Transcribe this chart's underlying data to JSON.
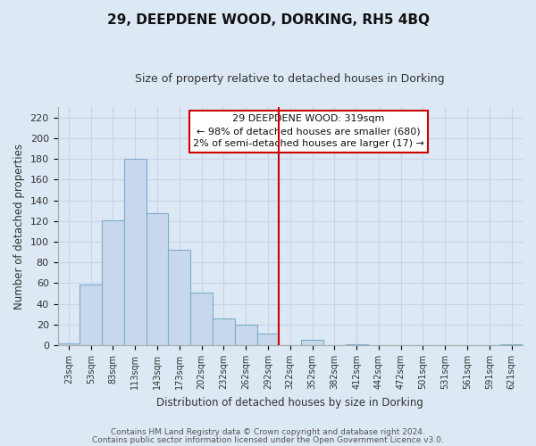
{
  "title": "29, DEEPDENE WOOD, DORKING, RH5 4BQ",
  "subtitle": "Size of property relative to detached houses in Dorking",
  "xlabel": "Distribution of detached houses by size in Dorking",
  "ylabel": "Number of detached properties",
  "bin_labels": [
    "23sqm",
    "53sqm",
    "83sqm",
    "113sqm",
    "143sqm",
    "173sqm",
    "202sqm",
    "232sqm",
    "262sqm",
    "292sqm",
    "322sqm",
    "352sqm",
    "382sqm",
    "412sqm",
    "442sqm",
    "472sqm",
    "501sqm",
    "531sqm",
    "561sqm",
    "591sqm",
    "621sqm"
  ],
  "bar_heights": [
    2,
    59,
    121,
    180,
    128,
    92,
    51,
    26,
    20,
    11,
    0,
    5,
    0,
    1,
    0,
    0,
    0,
    0,
    0,
    0,
    1
  ],
  "bar_color": "#c8d8ec",
  "bar_edge_color": "#7aaccc",
  "vline_color": "#cc0000",
  "vline_x_index": 10,
  "ylim": [
    0,
    230
  ],
  "yticks": [
    0,
    20,
    40,
    60,
    80,
    100,
    120,
    140,
    160,
    180,
    200,
    220
  ],
  "annotation_title": "29 DEEPDENE WOOD: 319sqm",
  "annotation_line1": "← 98% of detached houses are smaller (680)",
  "annotation_line2": "2% of semi-detached houses are larger (17) →",
  "annotation_box_facecolor": "#ffffff",
  "annotation_box_edgecolor": "#cc0000",
  "grid_color": "#c8d4e8",
  "background_color": "#dce8f4",
  "plot_bg_color": "#dce8f4",
  "footer1": "Contains HM Land Registry data © Crown copyright and database right 2024.",
  "footer2": "Contains public sector information licensed under the Open Government Licence v3.0."
}
